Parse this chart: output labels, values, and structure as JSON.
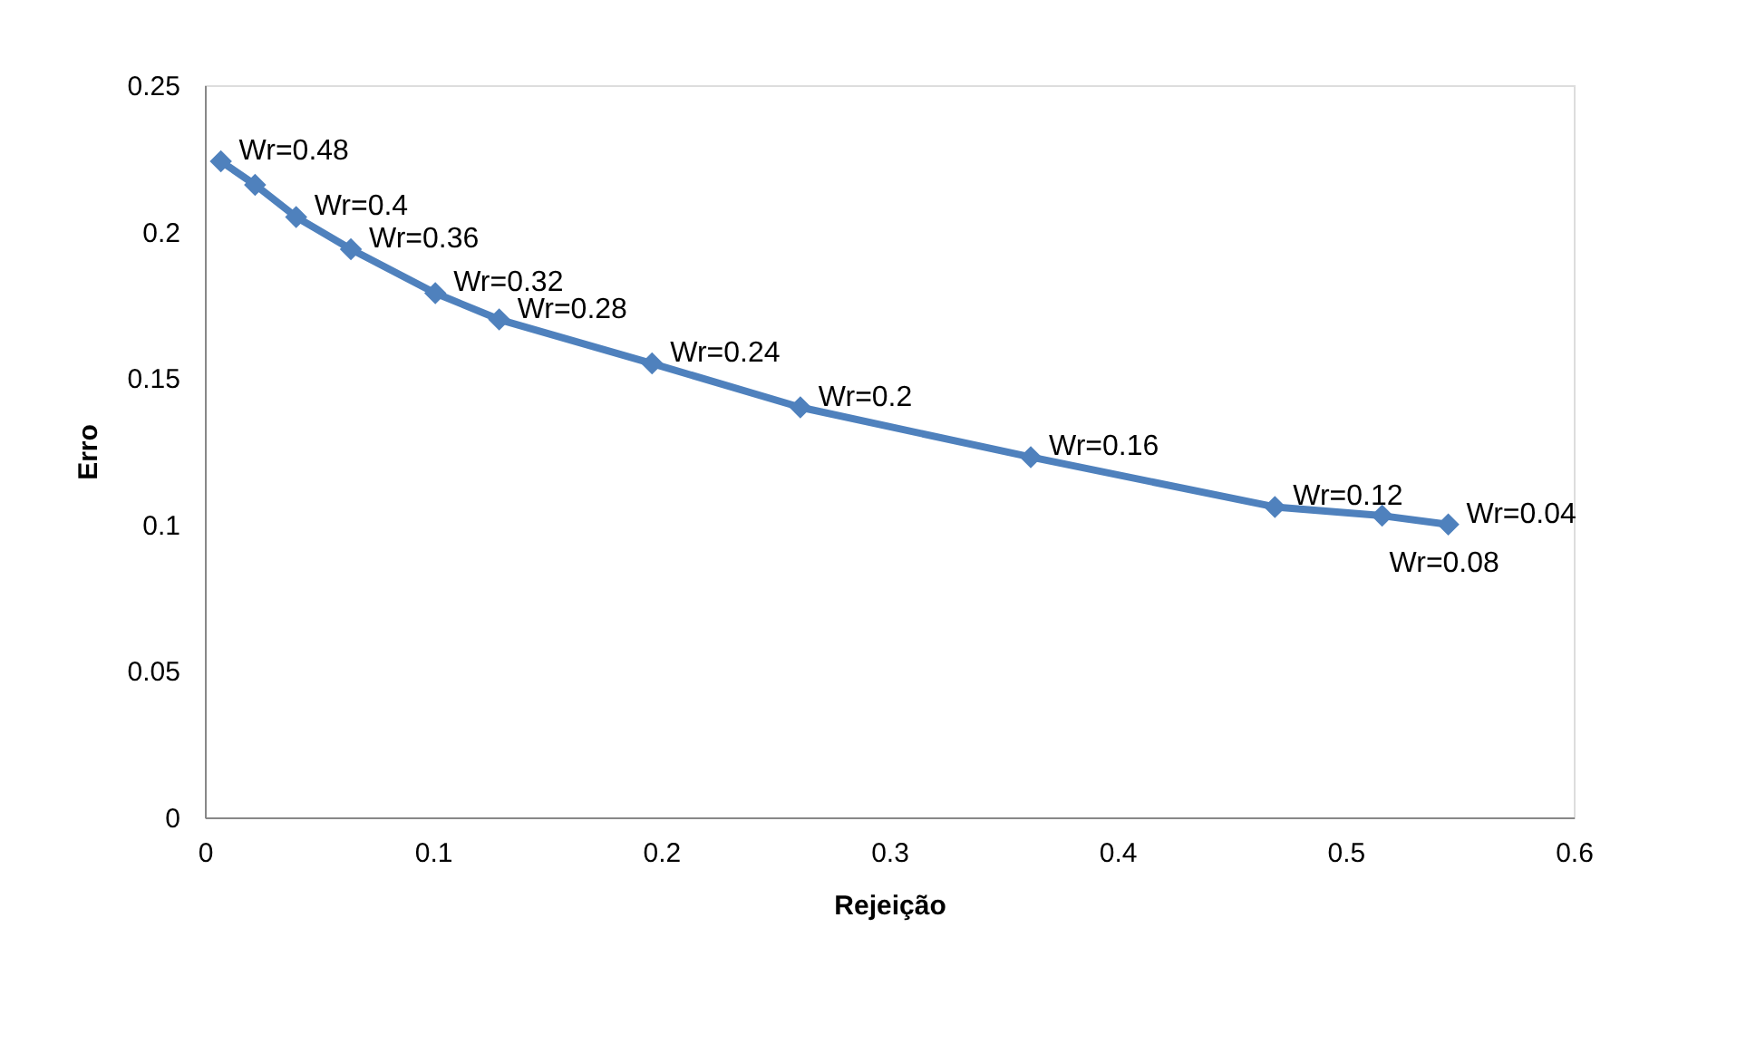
{
  "chart_data": {
    "type": "line",
    "xlabel": "Rejeição",
    "ylabel": "Erro",
    "x": [
      0.007,
      0.022,
      0.04,
      0.064,
      0.101,
      0.129,
      0.196,
      0.261,
      0.362,
      0.469,
      0.516,
      0.545
    ],
    "series": [
      {
        "color": "#4f81bd",
        "values": [
          0.224,
          0.216,
          0.205,
          0.194,
          0.179,
          0.17,
          0.155,
          0.14,
          0.123,
          0.106,
          0.103,
          0.1
        ]
      }
    ],
    "annotations": [
      {
        "text": "Wr=0.48",
        "x": 0.007,
        "y": 0.224
      },
      {
        "text": "Wr=0.4",
        "x": 0.04,
        "y": 0.205
      },
      {
        "text": "Wr=0.36",
        "x": 0.064,
        "y": 0.194
      },
      {
        "text": "Wr=0.32",
        "x": 0.101,
        "y": 0.179
      },
      {
        "text": "Wr=0.28",
        "x": 0.129,
        "y": 0.17
      },
      {
        "text": "Wr=0.24",
        "x": 0.196,
        "y": 0.155
      },
      {
        "text": "Wr=0.2",
        "x": 0.261,
        "y": 0.14
      },
      {
        "text": "Wr=0.16",
        "x": 0.362,
        "y": 0.123
      },
      {
        "text": "Wr=0.12",
        "x": 0.469,
        "y": 0.106
      },
      {
        "text": "Wr=0.08",
        "x": 0.516,
        "y": 0.103
      },
      {
        "text": "Wr=0.04",
        "x": 0.545,
        "y": 0.1
      }
    ],
    "xlim": [
      0,
      0.6
    ],
    "xticks": [
      0,
      0.1,
      0.2,
      0.3,
      0.4,
      0.5,
      0.6
    ],
    "ylim": [
      0,
      0.25
    ],
    "yticks": [
      0,
      0.05,
      0.1,
      0.15,
      0.2,
      0.25
    ],
    "grid": false,
    "marker": "diamond",
    "line_style": "solid"
  }
}
